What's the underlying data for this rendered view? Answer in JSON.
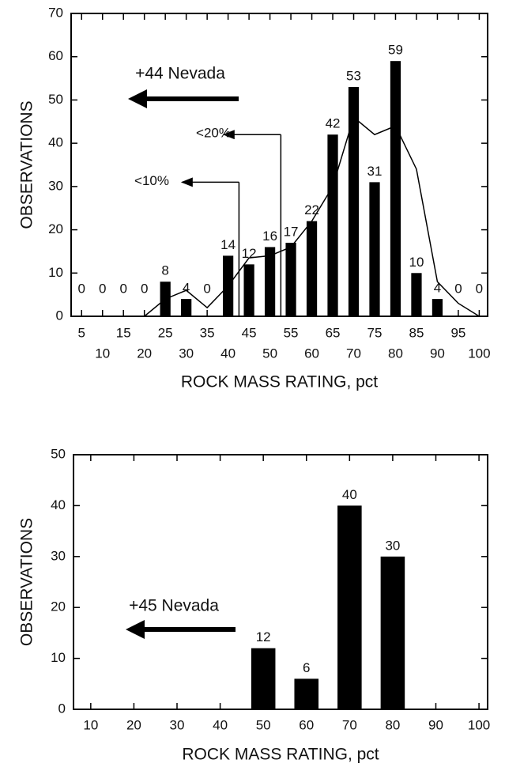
{
  "chart_data": [
    {
      "type": "bar",
      "xlabel": "ROCK MASS RATING, pct",
      "ylabel": "OBSERVATIONS",
      "x": [
        5,
        10,
        15,
        20,
        25,
        30,
        35,
        40,
        45,
        50,
        55,
        60,
        65,
        70,
        75,
        80,
        85,
        90,
        95,
        100
      ],
      "values": [
        0,
        0,
        0,
        0,
        8,
        4,
        0,
        14,
        12,
        16,
        17,
        22,
        42,
        53,
        31,
        59,
        10,
        4,
        0,
        0
      ],
      "color": "#000000",
      "line_x": [
        20,
        25,
        30,
        35,
        40,
        45,
        50,
        55,
        60,
        65,
        70,
        75,
        80,
        85,
        90,
        95,
        100
      ],
      "line_values": [
        0,
        4,
        6,
        2,
        7,
        13.5,
        14,
        16,
        22,
        30,
        46,
        42,
        44,
        34,
        8,
        3,
        0
      ],
      "xlim": [
        2.5,
        102
      ],
      "ylim": [
        0,
        70
      ],
      "xticks": [
        5,
        10,
        15,
        20,
        25,
        30,
        35,
        40,
        45,
        50,
        55,
        60,
        65,
        70,
        75,
        80,
        85,
        90,
        95,
        100
      ],
      "yticks": [
        0,
        10,
        20,
        30,
        40,
        50,
        60,
        70
      ],
      "annotations": [
        {
          "text": "+44 Nevada"
        },
        {
          "text": "<20%"
        },
        {
          "text": "<10%"
        }
      ]
    },
    {
      "type": "bar",
      "xlabel": "ROCK MASS RATING, pct",
      "ylabel": "OBSERVATIONS",
      "x": [
        50,
        60,
        70,
        80
      ],
      "values": [
        12,
        6,
        40,
        30
      ],
      "color": "#000000",
      "xlim": [
        6,
        102
      ],
      "ylim": [
        0,
        50
      ],
      "xticks": [
        10,
        20,
        30,
        40,
        50,
        60,
        70,
        80,
        90,
        100
      ],
      "yticks": [
        0,
        10,
        20,
        30,
        40,
        50
      ],
      "annotations": [
        {
          "text": "+45 Nevada"
        }
      ]
    }
  ]
}
